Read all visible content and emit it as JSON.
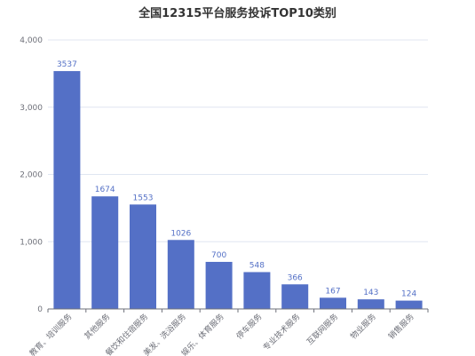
{
  "chart_data": {
    "type": "bar",
    "title": "全国12315平台服务投诉TOP10类别",
    "categories": [
      "教育、培训服务",
      "其他服务",
      "餐饮和住宿服务",
      "美发、洗浴服务",
      "娱乐、体育服务",
      "停车服务",
      "专业技术服务",
      "互联网服务",
      "物业服务",
      "销售服务"
    ],
    "values": [
      3537,
      1674,
      1553,
      1026,
      700,
      548,
      366,
      167,
      143,
      124
    ],
    "ylim": [
      0,
      4000
    ],
    "yticks": [
      0,
      1000,
      2000,
      3000,
      4000
    ],
    "ytick_labels": [
      "0",
      "1,000",
      "2,000",
      "3,000",
      "4,000"
    ],
    "grid": true,
    "colors": {
      "bar": "#5470c6",
      "grid": "#e0e6f1",
      "axis": "#6e7079"
    }
  }
}
